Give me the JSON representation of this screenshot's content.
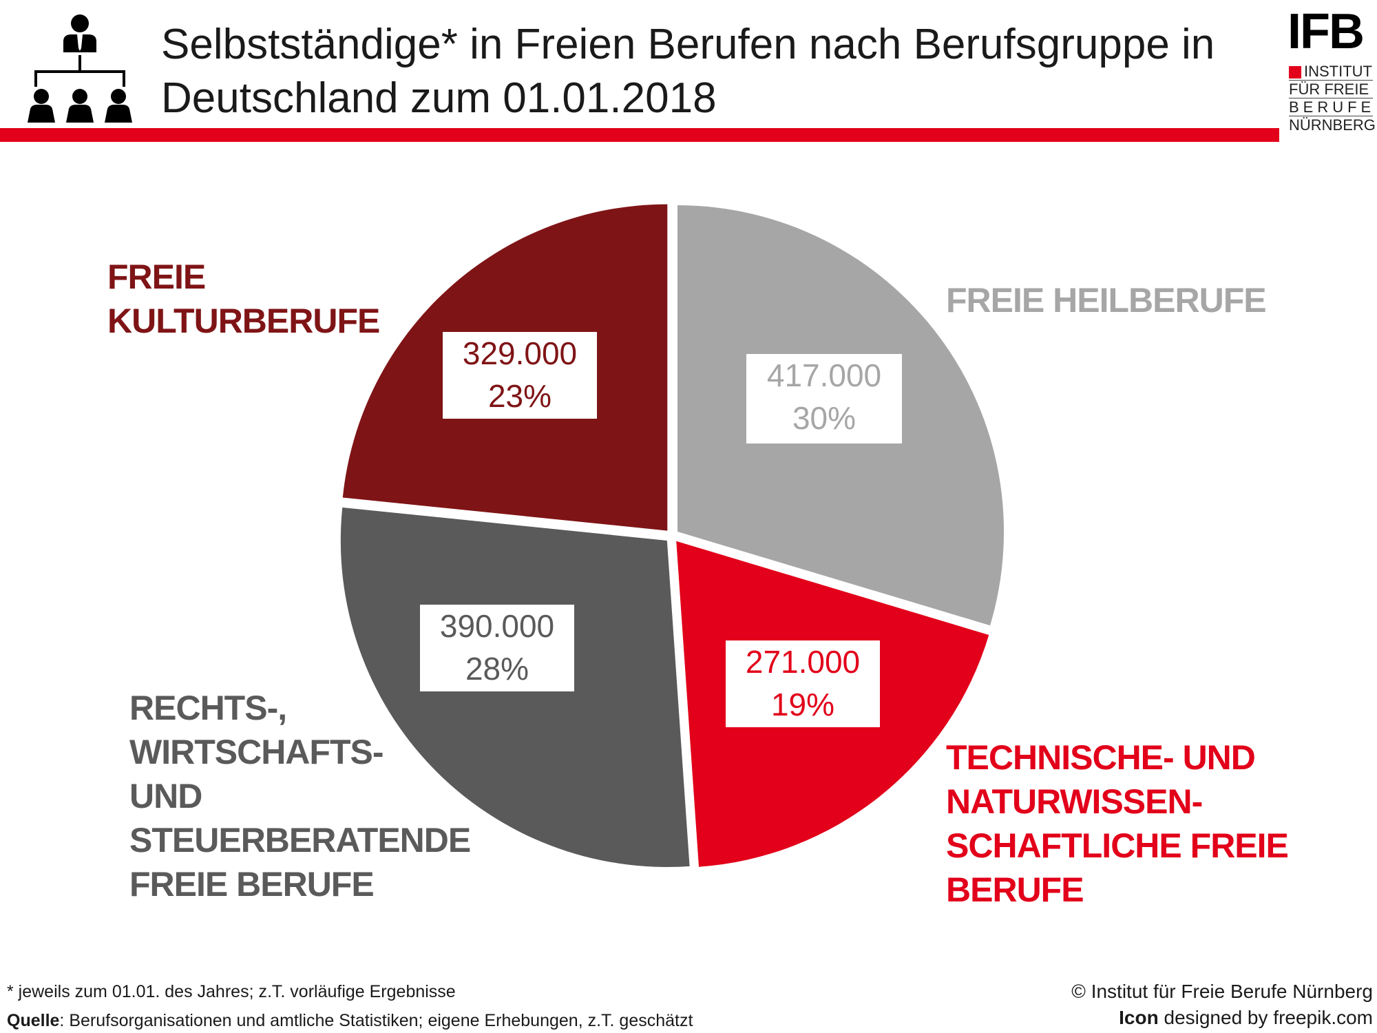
{
  "title": {
    "line1": "Selbstständige* in Freien Berufen nach Berufsgruppe in",
    "line2": "Deutschland zum 01.01.2018"
  },
  "logo": {
    "abbr": "IFB",
    "line1": "INSTITUT",
    "line2": "FÜR FREIE",
    "line3": "BERUFE",
    "line4": "NÜRNBERG"
  },
  "chart_data": {
    "type": "pie",
    "title": "Selbstständige* in Freien Berufen nach Berufsgruppe in Deutschland zum 01.01.2018",
    "slices": [
      {
        "label": "FREIE HEILBERUFE",
        "value": 417000,
        "value_label": "417.000",
        "percent_label": "30%",
        "color": "#a6a6a6"
      },
      {
        "label": "TECHNISCHE- UND NATURWISSEN-SCHAFTLICHE FREIE BERUFE",
        "value": 271000,
        "value_label": "271.000",
        "percent_label": "19%",
        "color": "#e2001a"
      },
      {
        "label": "RECHTS-, WIRTSCHAFTS- UND STEUERBERATENDE FREIE BERUFE",
        "value": 390000,
        "value_label": "390.000",
        "percent_label": "28%",
        "color": "#5a5a5a"
      },
      {
        "label": "FREIE KULTURBERUFE",
        "value": 329000,
        "value_label": "329.000",
        "percent_label": "23%",
        "color": "#7f1416"
      }
    ],
    "start_angle_deg": 0,
    "direction": "clockwise"
  },
  "labels": {
    "heil": [
      "FREIE HEILBERUFE"
    ],
    "tech": [
      "TECHNISCHE- UND",
      "NATURWISSEN-",
      "SCHAFTLICHE FREIE",
      "BERUFE"
    ],
    "recht": [
      "RECHTS-,",
      "WIRTSCHAFTS-",
      "UND",
      "STEUERBERATENDE",
      "FREIE BERUFE"
    ],
    "kultur": [
      "FREIE",
      "KULTURBERUFE"
    ]
  },
  "footnote": "* jeweils zum 01.01. des Jahres; z.T. vorläufige Ergebnisse",
  "source": {
    "label": "Quelle",
    "text": ": Berufsorganisationen und amtliche Statistiken; eigene Erhebungen, z.T. geschätzt"
  },
  "copyright": "© Institut für Freie Berufe Nürnberg",
  "icon_credit": {
    "bold": "Icon",
    "text": " designed by freepik.com"
  },
  "icons": {
    "header": "organization-hierarchy-icon"
  }
}
